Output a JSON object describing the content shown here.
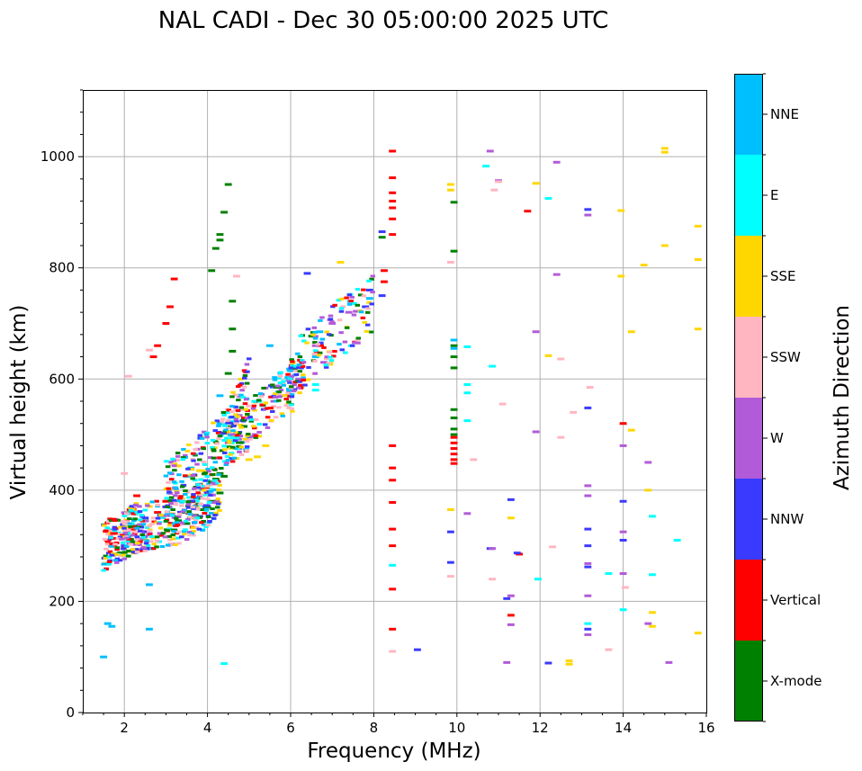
{
  "chart_data": {
    "type": "scatter",
    "title": "NAL CADI - Dec 30 05:00:00 2025 UTC",
    "xlabel": "Frequency (MHz)",
    "ylabel": "Virtual height (km)",
    "xlim": [
      1,
      16
    ],
    "ylim": [
      0,
      1120
    ],
    "xticks": [
      "2",
      "4",
      "6",
      "8",
      "10",
      "12",
      "14",
      "16"
    ],
    "yticks": [
      "0",
      "200",
      "400",
      "600",
      "800",
      "1000"
    ],
    "grid": true,
    "colorbar": {
      "label": "Azimuth Direction",
      "categories": [
        "X-mode",
        "Vertical",
        "NNW",
        "W",
        "SSW",
        "SSE",
        "E",
        "NNE"
      ],
      "colors": [
        "#008000",
        "#ff0000",
        "#3a3aff",
        "#b25bd8",
        "#ffb6c1",
        "#ffd700",
        "#00ffff",
        "#00bfff"
      ]
    },
    "series": [
      {
        "name": "X-mode",
        "points": [
          [
            4.1,
            380
          ],
          [
            4.3,
            395
          ],
          [
            4.0,
            370
          ],
          [
            3.9,
            365
          ],
          [
            3.7,
            355
          ],
          [
            3.6,
            350
          ],
          [
            4.2,
            420
          ],
          [
            4.3,
            430
          ],
          [
            4.4,
            425
          ],
          [
            4.6,
            650
          ],
          [
            4.6,
            690
          ],
          [
            4.6,
            740
          ],
          [
            4.3,
            860
          ],
          [
            4.3,
            850
          ],
          [
            4.4,
            900
          ],
          [
            4.5,
            950
          ],
          [
            4.2,
            835
          ],
          [
            4.1,
            795
          ],
          [
            3.5,
            340
          ],
          [
            3.4,
            360
          ],
          [
            3.3,
            345
          ],
          [
            3.8,
            375
          ],
          [
            9.93,
            620
          ],
          [
            9.93,
            640
          ],
          [
            9.93,
            660
          ],
          [
            9.93,
            530
          ],
          [
            9.93,
            545
          ],
          [
            9.93,
            510
          ],
          [
            9.93,
            500
          ],
          [
            9.93,
            918
          ],
          [
            9.93,
            830
          ],
          [
            8.2,
            855
          ],
          [
            4.5,
            610
          ]
        ]
      },
      {
        "name": "Vertical",
        "points": [
          [
            8.45,
            1010
          ],
          [
            8.45,
            962
          ],
          [
            8.45,
            935
          ],
          [
            8.45,
            920
          ],
          [
            8.45,
            908
          ],
          [
            8.45,
            888
          ],
          [
            8.45,
            860
          ],
          [
            8.45,
            480
          ],
          [
            8.45,
            440
          ],
          [
            8.45,
            418
          ],
          [
            8.45,
            378
          ],
          [
            8.45,
            330
          ],
          [
            8.45,
            300
          ],
          [
            8.45,
            222
          ],
          [
            8.45,
            150
          ],
          [
            9.93,
            495
          ],
          [
            9.93,
            485
          ],
          [
            9.93,
            475
          ],
          [
            9.93,
            465
          ],
          [
            9.93,
            455
          ],
          [
            9.93,
            448
          ],
          [
            3.1,
            730
          ],
          [
            3.0,
            700
          ],
          [
            2.8,
            660
          ],
          [
            2.7,
            640
          ],
          [
            3.2,
            780
          ],
          [
            2.0,
            320
          ],
          [
            2.2,
            330
          ],
          [
            2.5,
            345
          ],
          [
            2.8,
            360
          ],
          [
            3.0,
            380
          ],
          [
            11.3,
            175
          ],
          [
            11.5,
            285
          ],
          [
            11.7,
            902
          ],
          [
            14.0,
            520
          ],
          [
            8.25,
            795
          ],
          [
            8.25,
            775
          ],
          [
            1.6,
            310
          ],
          [
            1.7,
            300
          ],
          [
            2.3,
            390
          ]
        ]
      },
      {
        "name": "NNW",
        "points": [
          [
            6.4,
            790
          ],
          [
            7.9,
            760
          ],
          [
            7.8,
            730
          ],
          [
            8.2,
            750
          ],
          [
            8.2,
            865
          ],
          [
            9.05,
            113
          ],
          [
            9.85,
            325
          ],
          [
            9.85,
            270
          ],
          [
            11.3,
            383
          ],
          [
            11.45,
            287
          ],
          [
            11.2,
            205
          ],
          [
            12.2,
            89
          ],
          [
            13.15,
            905
          ],
          [
            13.15,
            548
          ],
          [
            13.15,
            300
          ],
          [
            13.15,
            262
          ],
          [
            13.15,
            330
          ],
          [
            13.15,
            150
          ],
          [
            14.0,
            380
          ],
          [
            14.0,
            310
          ],
          [
            10.8,
            295
          ],
          [
            3.6,
            380
          ],
          [
            3.0,
            370
          ],
          [
            2.5,
            350
          ],
          [
            2.0,
            300
          ]
        ]
      },
      {
        "name": "W",
        "points": [
          [
            10.8,
            1010
          ],
          [
            11.0,
            957
          ],
          [
            12.4,
            990
          ],
          [
            12.4,
            788
          ],
          [
            13.15,
            895
          ],
          [
            13.15,
            408
          ],
          [
            13.15,
            390
          ],
          [
            13.15,
            268
          ],
          [
            13.15,
            210
          ],
          [
            13.15,
            140
          ],
          [
            14.0,
            480
          ],
          [
            14.0,
            325
          ],
          [
            14.0,
            250
          ],
          [
            14.6,
            450
          ],
          [
            15.1,
            90
          ],
          [
            11.3,
            210
          ],
          [
            11.3,
            158
          ],
          [
            11.2,
            90
          ],
          [
            11.9,
            505
          ],
          [
            10.25,
            358
          ],
          [
            10.85,
            295
          ],
          [
            6.6,
            660
          ],
          [
            6.8,
            630
          ],
          [
            7.0,
            700
          ],
          [
            7.4,
            720
          ],
          [
            6.2,
            600
          ],
          [
            5.6,
            560
          ],
          [
            11.9,
            685
          ],
          [
            14.6,
            160
          ]
        ]
      },
      {
        "name": "SSW",
        "points": [
          [
            10.9,
            940
          ],
          [
            11.0,
            955
          ],
          [
            9.85,
            810
          ],
          [
            9.85,
            245
          ],
          [
            10.4,
            455
          ],
          [
            11.1,
            555
          ],
          [
            10.85,
            240
          ],
          [
            12.3,
            298
          ],
          [
            12.5,
            636
          ],
          [
            12.8,
            540
          ],
          [
            12.5,
            495
          ],
          [
            13.2,
            585
          ],
          [
            13.65,
            113
          ],
          [
            14.05,
            225
          ],
          [
            8.45,
            110
          ],
          [
            2.6,
            652
          ],
          [
            4.7,
            785
          ],
          [
            2.1,
            605
          ],
          [
            2.0,
            430
          ]
        ]
      },
      {
        "name": "SSE",
        "points": [
          [
            9.85,
            950
          ],
          [
            9.85,
            940
          ],
          [
            11.9,
            952
          ],
          [
            12.2,
            642
          ],
          [
            12.7,
            93
          ],
          [
            12.7,
            87
          ],
          [
            13.95,
            903
          ],
          [
            13.95,
            785
          ],
          [
            14.2,
            685
          ],
          [
            14.2,
            508
          ],
          [
            14.5,
            805
          ],
          [
            14.6,
            400
          ],
          [
            14.7,
            180
          ],
          [
            14.7,
            155
          ],
          [
            15.0,
            1015
          ],
          [
            15.0,
            1008
          ],
          [
            15.0,
            840
          ],
          [
            15.8,
            875
          ],
          [
            15.8,
            815
          ],
          [
            15.8,
            690
          ],
          [
            15.8,
            143
          ],
          [
            11.3,
            350
          ],
          [
            9.85,
            365
          ],
          [
            5.2,
            460
          ],
          [
            5.4,
            480
          ],
          [
            5.0,
            455
          ],
          [
            7.2,
            810
          ]
        ]
      },
      {
        "name": "E",
        "points": [
          [
            10.7,
            983
          ],
          [
            12.2,
            925
          ],
          [
            10.25,
            658
          ],
          [
            10.85,
            623
          ],
          [
            10.25,
            590
          ],
          [
            10.25,
            575
          ],
          [
            10.25,
            525
          ],
          [
            11.95,
            240
          ],
          [
            13.65,
            250
          ],
          [
            13.15,
            160
          ],
          [
            14.0,
            185
          ],
          [
            14.7,
            353
          ],
          [
            14.7,
            248
          ],
          [
            15.3,
            310
          ],
          [
            8.45,
            265
          ],
          [
            4.4,
            88
          ],
          [
            6.6,
            590
          ],
          [
            6.6,
            580
          ]
        ]
      },
      {
        "name": "NNE",
        "points": [
          [
            9.93,
            670
          ],
          [
            9.93,
            655
          ],
          [
            7.9,
            745
          ],
          [
            6.7,
            685
          ],
          [
            6.6,
            640
          ],
          [
            5.5,
            660
          ],
          [
            3.5,
            425
          ],
          [
            3.6,
            440
          ],
          [
            4.3,
            570
          ],
          [
            1.6,
            160
          ],
          [
            1.7,
            155
          ],
          [
            1.5,
            100
          ],
          [
            2.6,
            230
          ],
          [
            2.6,
            150
          ],
          [
            6.0,
            615
          ]
        ]
      }
    ]
  }
}
